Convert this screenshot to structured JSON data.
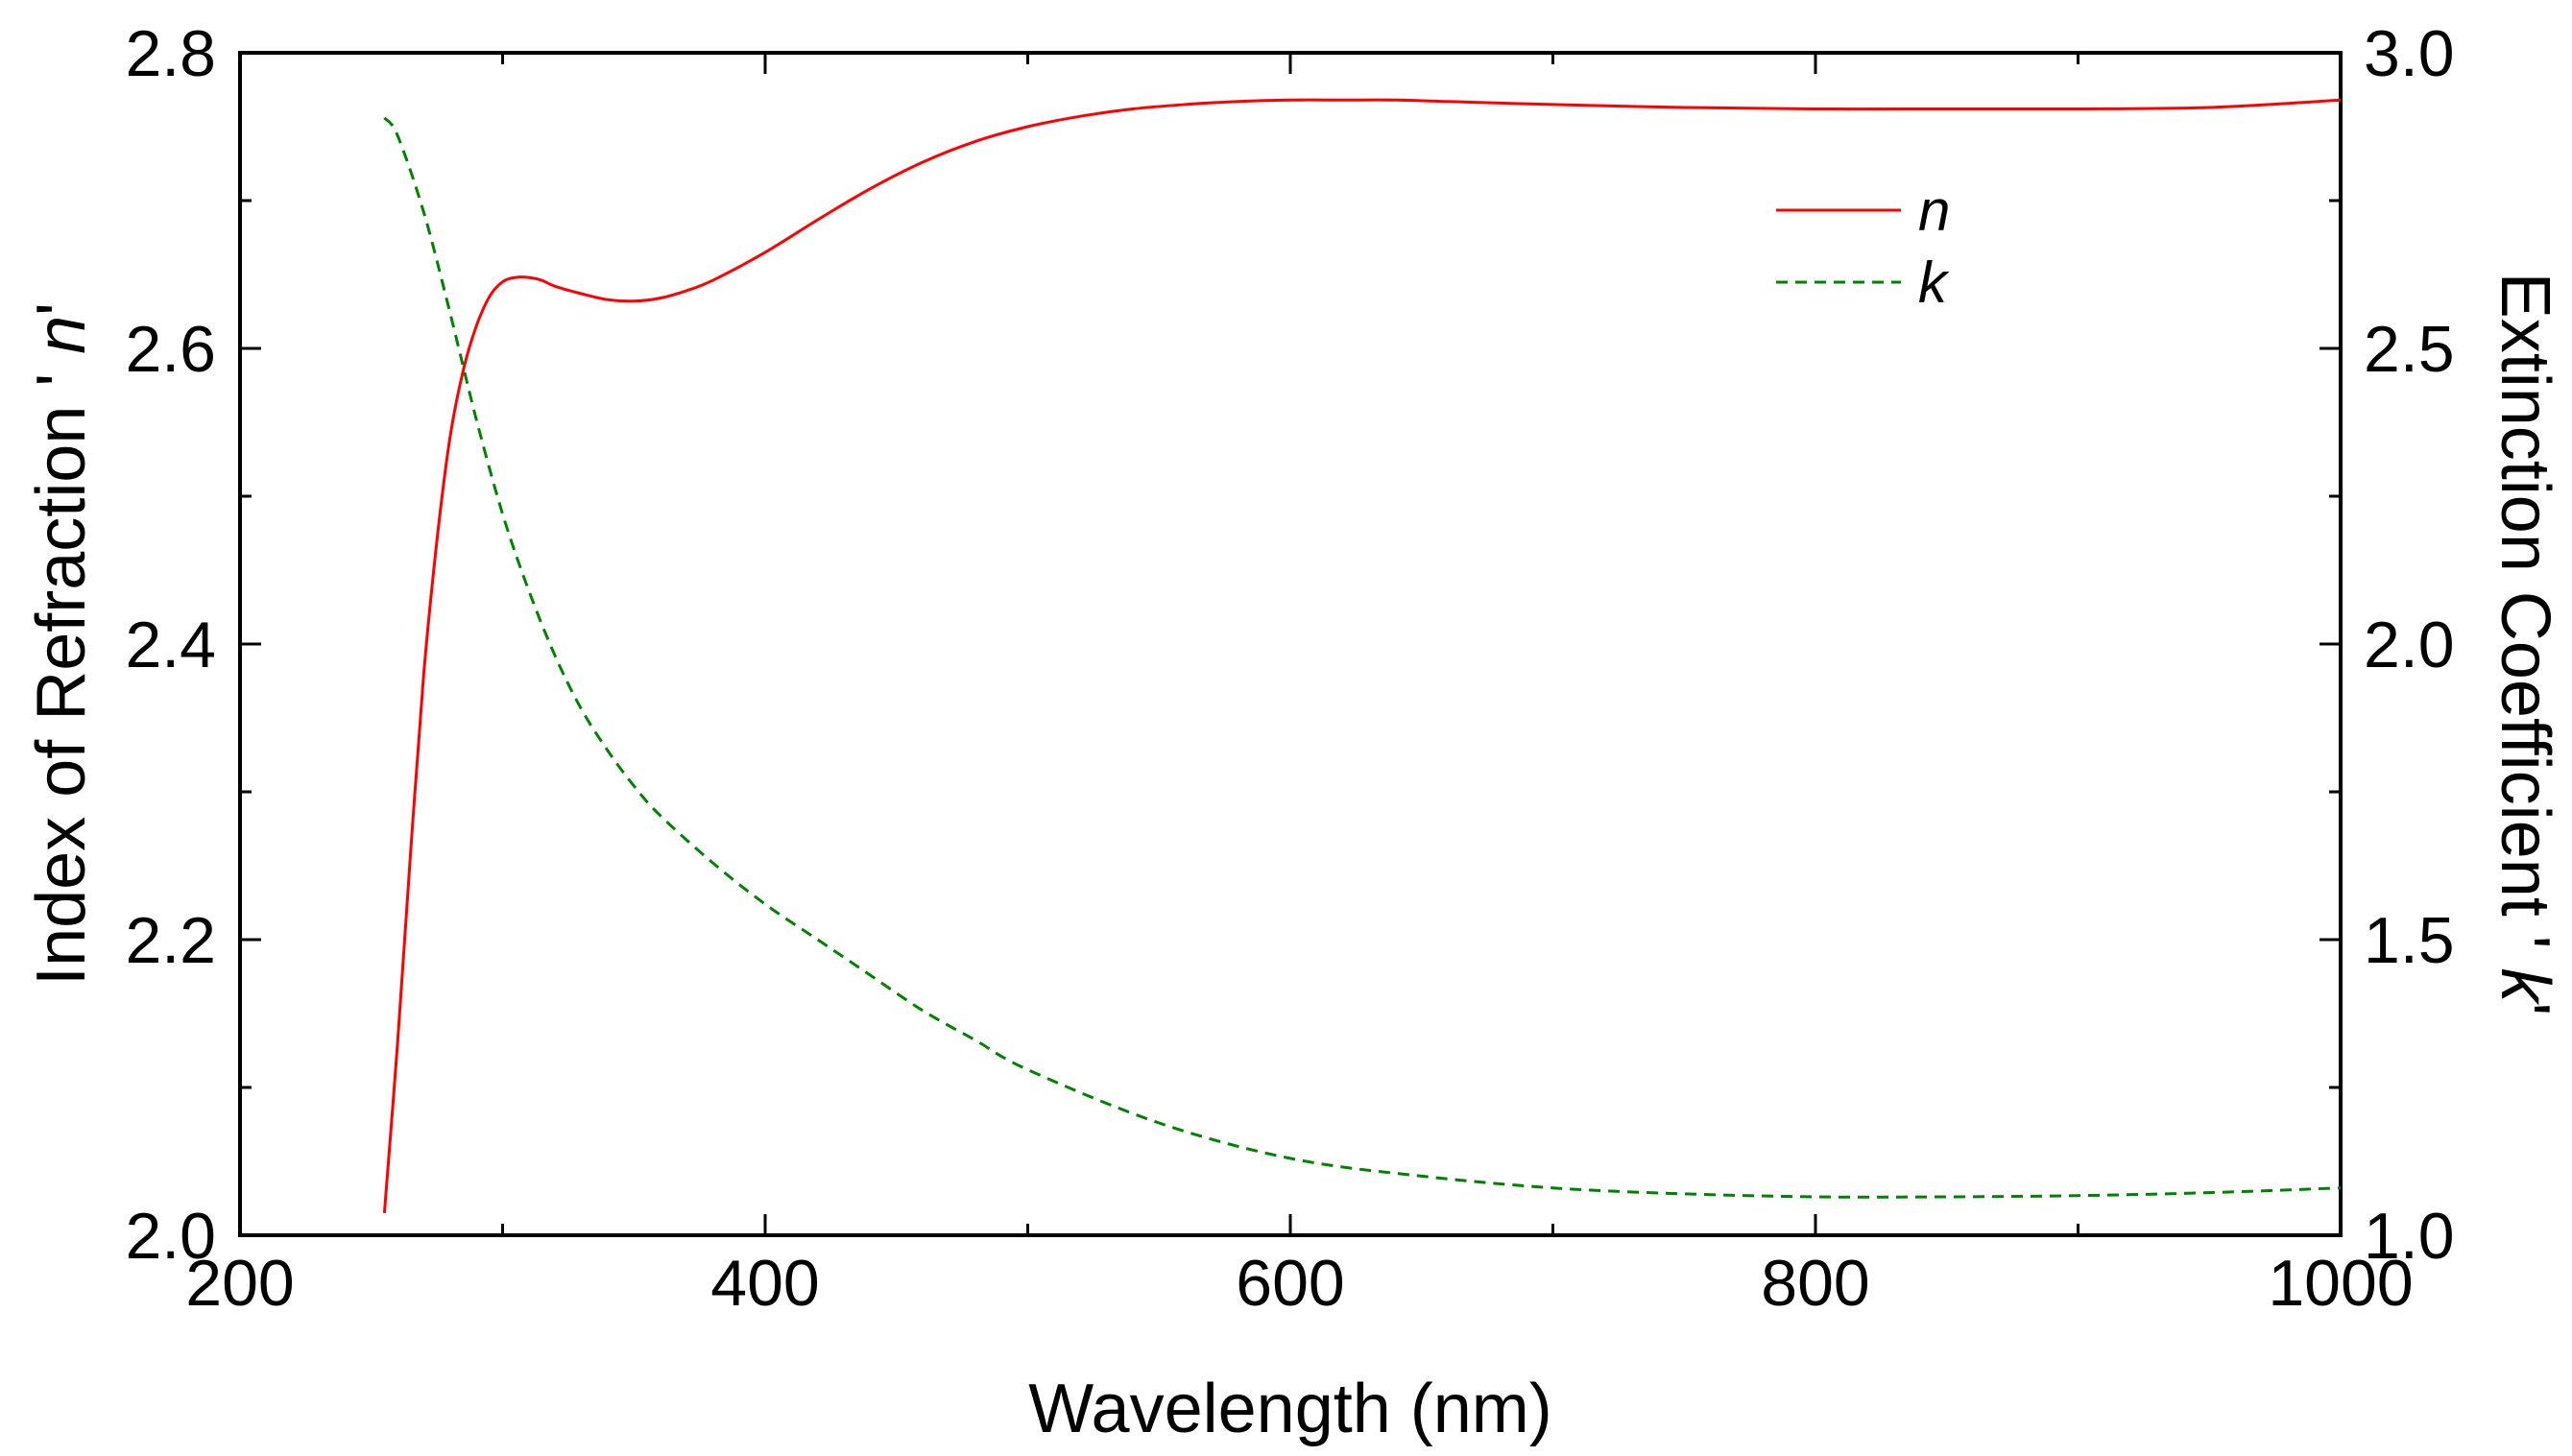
{
  "chart_data": {
    "type": "line",
    "title": "",
    "xlabel": "Wavelength (nm)",
    "ylabel_left": {
      "prefix": "Index of Refraction ' ",
      "var": "n",
      "suffix": "'"
    },
    "ylabel_right": {
      "prefix": "Extinction Coefficient ' ",
      "var": "k",
      "suffix": "'"
    },
    "xlim": [
      200,
      1000
    ],
    "ylim_left": [
      2.0,
      2.8
    ],
    "ylim_right": [
      1.0,
      3.0
    ],
    "xticks": [
      "200",
      "400",
      "600",
      "800",
      "1000"
    ],
    "yticks_left": [
      "2.0",
      "2.2",
      "2.4",
      "2.6",
      "2.8"
    ],
    "yticks_right": [
      "1.0",
      "1.5",
      "2.0",
      "2.5",
      "3.0"
    ],
    "legend_position": "top-right",
    "series": [
      {
        "name": "n",
        "axis": "left",
        "color": "#ff0000",
        "style": "solid",
        "x": [
          255,
          260,
          265,
          270,
          275,
          280,
          285,
          290,
          295,
          300,
          305,
          310,
          315,
          320,
          330,
          340,
          350,
          360,
          370,
          380,
          400,
          420,
          440,
          460,
          480,
          500,
          520,
          540,
          560,
          580,
          600,
          620,
          640,
          660,
          680,
          700,
          750,
          800,
          850,
          900,
          950,
          1000
        ],
        "y": [
          2.015,
          2.13,
          2.26,
          2.38,
          2.47,
          2.54,
          2.585,
          2.615,
          2.635,
          2.645,
          2.648,
          2.648,
          2.646,
          2.642,
          2.637,
          2.633,
          2.632,
          2.634,
          2.639,
          2.646,
          2.665,
          2.687,
          2.708,
          2.726,
          2.74,
          2.75,
          2.757,
          2.762,
          2.765,
          2.767,
          2.768,
          2.768,
          2.768,
          2.767,
          2.766,
          2.765,
          2.763,
          2.762,
          2.762,
          2.762,
          2.763,
          2.768
        ]
      },
      {
        "name": "k",
        "axis": "right",
        "color": "#008000",
        "style": "dashed",
        "x": [
          255,
          260,
          270,
          280,
          290,
          300,
          310,
          320,
          330,
          340,
          350,
          360,
          380,
          400,
          420,
          440,
          460,
          480,
          500,
          550,
          600,
          650,
          700,
          750,
          800,
          850,
          900,
          950,
          1000
        ],
        "y": [
          2.89,
          2.86,
          2.73,
          2.56,
          2.38,
          2.22,
          2.09,
          1.98,
          1.89,
          1.82,
          1.76,
          1.71,
          1.63,
          1.56,
          1.5,
          1.44,
          1.38,
          1.33,
          1.28,
          1.19,
          1.13,
          1.1,
          1.08,
          1.07,
          1.065,
          1.065,
          1.067,
          1.072,
          1.08
        ]
      }
    ]
  }
}
